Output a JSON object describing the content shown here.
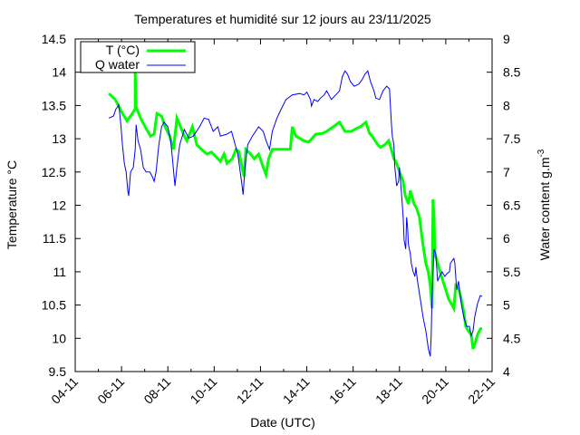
{
  "chart_data": {
    "type": "line",
    "title": "Temperatures et humidité sur 12 jours au 23/11/2025",
    "xlabel": "Date (UTC)",
    "ylabel": "Temperature °C",
    "y2label": "Water content g.m",
    "y2label_sup": "-3",
    "xlim": [
      4,
      22
    ],
    "ylim": [
      9.5,
      14.5
    ],
    "y2lim": [
      4,
      9
    ],
    "x_unit": "day of November 2025",
    "xticks": [
      {
        "v": 4,
        "label": "04-11"
      },
      {
        "v": 6,
        "label": "06-11"
      },
      {
        "v": 8,
        "label": "08-11"
      },
      {
        "v": 10,
        "label": "10-11"
      },
      {
        "v": 12,
        "label": "12-11"
      },
      {
        "v": 14,
        "label": "14-11"
      },
      {
        "v": 16,
        "label": "16-11"
      },
      {
        "v": 18,
        "label": "18-11"
      },
      {
        "v": 20,
        "label": "20-11"
      },
      {
        "v": 22,
        "label": "22-11"
      }
    ],
    "yticks": [
      "9.5",
      "10",
      "10.5",
      "11",
      "11.5",
      "12",
      "12.5",
      "13",
      "13.5",
      "14",
      "14.5"
    ],
    "y2ticks": [
      "4",
      "4.5",
      "5",
      "5.5",
      "6",
      "6.5",
      "7",
      "7.5",
      "8",
      "8.5",
      "9"
    ],
    "grid": false,
    "legend_position": "top-left",
    "series": [
      {
        "name": "T (°C)",
        "axis": "left",
        "color": "#00ff00",
        "points": [
          [
            5.45,
            13.68
          ],
          [
            5.73,
            13.59
          ],
          [
            6.04,
            13.38
          ],
          [
            6.24,
            13.27
          ],
          [
            6.43,
            13.36
          ],
          [
            6.59,
            13.45
          ],
          [
            6.59,
            14.0
          ],
          [
            6.63,
            13.48
          ],
          [
            6.82,
            13.31
          ],
          [
            7.02,
            13.18
          ],
          [
            7.25,
            13.04
          ],
          [
            7.41,
            13.07
          ],
          [
            7.53,
            13.38
          ],
          [
            7.73,
            13.34
          ],
          [
            7.88,
            13.18
          ],
          [
            8.08,
            13.04
          ],
          [
            8.24,
            12.84
          ],
          [
            8.39,
            13.31
          ],
          [
            8.51,
            13.21
          ],
          [
            8.71,
            13.04
          ],
          [
            8.82,
            12.97
          ],
          [
            9.06,
            13.18
          ],
          [
            9.25,
            12.91
          ],
          [
            9.45,
            12.84
          ],
          [
            9.69,
            12.77
          ],
          [
            9.88,
            12.8
          ],
          [
            10.08,
            12.73
          ],
          [
            10.27,
            12.66
          ],
          [
            10.43,
            12.77
          ],
          [
            10.55,
            12.63
          ],
          [
            10.78,
            12.7
          ],
          [
            10.94,
            12.84
          ],
          [
            11.06,
            12.81
          ],
          [
            11.29,
            12.43
          ],
          [
            11.37,
            12.84
          ],
          [
            11.57,
            12.77
          ],
          [
            11.73,
            12.7
          ],
          [
            11.92,
            12.77
          ],
          [
            12.12,
            12.57
          ],
          [
            12.24,
            12.46
          ],
          [
            12.35,
            12.7
          ],
          [
            12.51,
            12.84
          ],
          [
            12.71,
            12.84
          ],
          [
            13.1,
            12.84
          ],
          [
            13.29,
            12.84
          ],
          [
            13.37,
            13.18
          ],
          [
            13.53,
            13.04
          ],
          [
            13.88,
            12.97
          ],
          [
            14.08,
            12.95
          ],
          [
            14.39,
            13.07
          ],
          [
            14.67,
            13.08
          ],
          [
            14.86,
            13.11
          ],
          [
            15.14,
            13.18
          ],
          [
            15.41,
            13.25
          ],
          [
            15.65,
            13.11
          ],
          [
            15.92,
            13.11
          ],
          [
            16.12,
            13.15
          ],
          [
            16.31,
            13.18
          ],
          [
            16.55,
            13.25
          ],
          [
            16.71,
            13.08
          ],
          [
            16.82,
            13.04
          ],
          [
            17.06,
            12.91
          ],
          [
            17.18,
            12.87
          ],
          [
            17.37,
            12.91
          ],
          [
            17.53,
            12.97
          ],
          [
            17.65,
            12.84
          ],
          [
            17.76,
            12.7
          ],
          [
            17.88,
            12.63
          ],
          [
            18.0,
            12.5
          ],
          [
            18.16,
            12.36
          ],
          [
            18.24,
            12.16
          ],
          [
            18.39,
            12.02
          ],
          [
            18.47,
            12.22
          ],
          [
            18.63,
            12.02
          ],
          [
            18.75,
            11.95
          ],
          [
            18.86,
            11.82
          ],
          [
            19.02,
            11.4
          ],
          [
            19.14,
            11.13
          ],
          [
            19.25,
            10.99
          ],
          [
            19.33,
            10.79
          ],
          [
            19.41,
            10.45
          ],
          [
            19.45,
            12.09
          ],
          [
            19.49,
            11.82
          ],
          [
            19.53,
            11.27
          ],
          [
            19.65,
            11.13
          ],
          [
            19.76,
            10.99
          ],
          [
            19.88,
            10.86
          ],
          [
            20.0,
            10.73
          ],
          [
            20.12,
            10.59
          ],
          [
            20.24,
            10.52
          ],
          [
            20.35,
            10.45
          ],
          [
            20.43,
            10.79
          ],
          [
            20.55,
            10.75
          ],
          [
            20.67,
            10.59
          ],
          [
            20.78,
            10.39
          ],
          [
            20.86,
            10.18
          ],
          [
            20.98,
            10.11
          ],
          [
            21.1,
            10.05
          ],
          [
            21.18,
            9.84
          ],
          [
            21.25,
            9.91
          ],
          [
            21.37,
            10.05
          ],
          [
            21.49,
            10.14
          ],
          [
            21.57,
            10.15
          ]
        ]
      },
      {
        "name": "Q water",
        "axis": "right",
        "color": "#0000ff",
        "points": [
          [
            5.45,
            7.81
          ],
          [
            5.65,
            7.84
          ],
          [
            5.76,
            7.95
          ],
          [
            5.84,
            7.98
          ],
          [
            5.88,
            8.02
          ],
          [
            5.96,
            7.75
          ],
          [
            6.04,
            7.41
          ],
          [
            6.12,
            7.13
          ],
          [
            6.2,
            7.0
          ],
          [
            6.27,
            6.72
          ],
          [
            6.31,
            6.64
          ],
          [
            6.39,
            7.0
          ],
          [
            6.51,
            7.07
          ],
          [
            6.59,
            7.34
          ],
          [
            6.63,
            7.71
          ],
          [
            6.71,
            7.47
          ],
          [
            6.82,
            7.34
          ],
          [
            6.94,
            7.07
          ],
          [
            7.06,
            7.0
          ],
          [
            7.22,
            7.0
          ],
          [
            7.33,
            6.93
          ],
          [
            7.41,
            6.86
          ],
          [
            7.49,
            7.0
          ],
          [
            7.61,
            7.41
          ],
          [
            7.73,
            7.68
          ],
          [
            7.84,
            7.75
          ],
          [
            8.0,
            7.68
          ],
          [
            8.12,
            7.47
          ],
          [
            8.2,
            7.2
          ],
          [
            8.27,
            6.93
          ],
          [
            8.31,
            6.79
          ],
          [
            8.39,
            7.07
          ],
          [
            8.51,
            7.41
          ],
          [
            8.71,
            7.64
          ],
          [
            8.9,
            7.51
          ],
          [
            9.1,
            7.54
          ],
          [
            9.37,
            7.68
          ],
          [
            9.57,
            7.81
          ],
          [
            9.76,
            7.79
          ],
          [
            9.96,
            7.61
          ],
          [
            10.16,
            7.68
          ],
          [
            10.27,
            7.54
          ],
          [
            10.55,
            7.57
          ],
          [
            10.75,
            7.61
          ],
          [
            10.86,
            7.47
          ],
          [
            11.02,
            7.27
          ],
          [
            11.18,
            6.86
          ],
          [
            11.25,
            6.66
          ],
          [
            11.33,
            7.07
          ],
          [
            11.45,
            7.41
          ],
          [
            11.65,
            7.54
          ],
          [
            11.92,
            7.68
          ],
          [
            12.12,
            7.61
          ],
          [
            12.24,
            7.47
          ],
          [
            12.39,
            7.34
          ],
          [
            12.51,
            7.61
          ],
          [
            12.71,
            7.81
          ],
          [
            12.9,
            7.95
          ],
          [
            13.1,
            8.09
          ],
          [
            13.37,
            8.16
          ],
          [
            13.69,
            8.18
          ],
          [
            13.88,
            8.16
          ],
          [
            14.0,
            8.2
          ],
          [
            14.16,
            8.09
          ],
          [
            14.2,
            7.99
          ],
          [
            14.31,
            8.09
          ],
          [
            14.47,
            8.06
          ],
          [
            14.59,
            8.11
          ],
          [
            14.75,
            8.16
          ],
          [
            14.86,
            8.22
          ],
          [
            15.06,
            8.09
          ],
          [
            15.25,
            8.16
          ],
          [
            15.41,
            8.22
          ],
          [
            15.53,
            8.43
          ],
          [
            15.65,
            8.52
          ],
          [
            15.76,
            8.47
          ],
          [
            15.88,
            8.36
          ],
          [
            16.04,
            8.29
          ],
          [
            16.24,
            8.32
          ],
          [
            16.39,
            8.39
          ],
          [
            16.51,
            8.47
          ],
          [
            16.63,
            8.52
          ],
          [
            16.75,
            8.36
          ],
          [
            16.9,
            8.22
          ],
          [
            16.98,
            8.11
          ],
          [
            17.14,
            8.09
          ],
          [
            17.29,
            8.22
          ],
          [
            17.45,
            8.29
          ],
          [
            17.57,
            8.25
          ],
          [
            17.65,
            7.75
          ],
          [
            17.69,
            7.54
          ],
          [
            17.76,
            7.41
          ],
          [
            17.8,
            7.07
          ],
          [
            17.88,
            6.79
          ],
          [
            17.96,
            6.86
          ],
          [
            18.0,
            7.07
          ],
          [
            18.08,
            6.72
          ],
          [
            18.16,
            6.32
          ],
          [
            18.2,
            5.98
          ],
          [
            18.27,
            5.84
          ],
          [
            18.31,
            6.32
          ],
          [
            18.35,
            6.18
          ],
          [
            18.39,
            5.91
          ],
          [
            18.47,
            5.77
          ],
          [
            18.51,
            5.63
          ],
          [
            18.59,
            5.5
          ],
          [
            18.67,
            5.43
          ],
          [
            18.71,
            5.57
          ],
          [
            18.78,
            5.36
          ],
          [
            18.9,
            5.09
          ],
          [
            19.02,
            4.82
          ],
          [
            19.14,
            4.61
          ],
          [
            19.25,
            4.34
          ],
          [
            19.33,
            4.23
          ],
          [
            19.37,
            4.54
          ],
          [
            19.41,
            5.16
          ],
          [
            19.49,
            5.84
          ],
          [
            19.57,
            5.77
          ],
          [
            19.65,
            5.36
          ],
          [
            19.73,
            5.43
          ],
          [
            19.84,
            5.5
          ],
          [
            19.96,
            5.43
          ],
          [
            20.04,
            5.47
          ],
          [
            20.16,
            5.5
          ],
          [
            20.2,
            5.63
          ],
          [
            20.35,
            5.7
          ],
          [
            20.39,
            5.63
          ],
          [
            20.47,
            5.23
          ],
          [
            20.55,
            5.36
          ],
          [
            20.67,
            5.02
          ],
          [
            20.78,
            4.82
          ],
          [
            20.9,
            4.68
          ],
          [
            21.02,
            4.68
          ],
          [
            21.1,
            4.54
          ],
          [
            21.18,
            4.61
          ],
          [
            21.25,
            4.82
          ],
          [
            21.37,
            5.02
          ],
          [
            21.49,
            5.14
          ],
          [
            21.57,
            5.13
          ]
        ]
      }
    ]
  }
}
